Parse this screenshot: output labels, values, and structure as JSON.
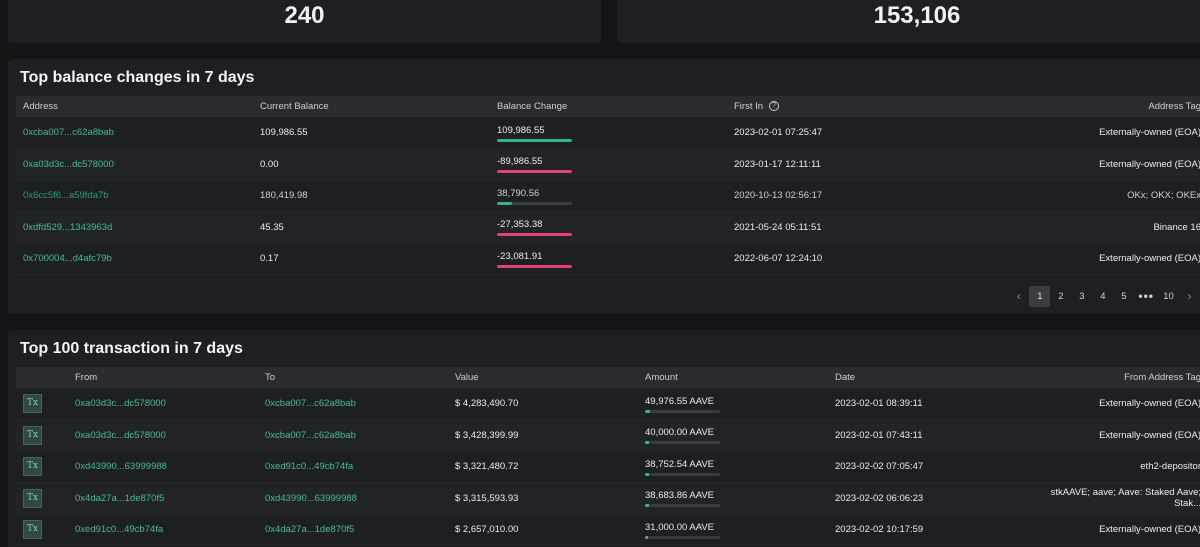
{
  "stats": [
    {
      "value": "240"
    },
    {
      "value": "153,106"
    }
  ],
  "balance_panel": {
    "title": "Top balance changes in 7 days",
    "headers": [
      "Address",
      "Current Balance",
      "Balance Change",
      "First In",
      "Address Tag"
    ],
    "rows": [
      {
        "address": "0xcba007...c62a8bab",
        "current": "109,986.55",
        "change": "109,986.55",
        "change_ratio": 1.0,
        "sign": "pos",
        "first_in": "2023-02-01 07:25:47",
        "tag": "Externally-owned (EOA)"
      },
      {
        "address": "0xa03d3c...dc578000",
        "current": "0.00",
        "change": "-89,986.55",
        "change_ratio": 1.0,
        "sign": "neg",
        "first_in": "2023-01-17 12:11:11",
        "tag": "Externally-owned (EOA)"
      },
      {
        "address": "0x6cc5f6...a59fda7b",
        "current": "180,419.98",
        "change": "38,790.56",
        "change_ratio": 0.2,
        "sign": "pos",
        "first_in": "2020-10-13 02:56:17",
        "tag": "OKx; OKX; OKEx"
      },
      {
        "address": "0xdfd529...1343963d",
        "current": "45.35",
        "change": "-27,353.38",
        "change_ratio": 1.0,
        "sign": "neg",
        "first_in": "2021-05-24 05:11:51",
        "tag": "Binance 16"
      },
      {
        "address": "0x700004...d4afc79b",
        "current": "0.17",
        "change": "-23,081.91",
        "change_ratio": 1.0,
        "sign": "neg",
        "first_in": "2022-06-07 12:24:10",
        "tag": "Externally-owned (EOA)"
      }
    ],
    "pager": {
      "prev": "‹",
      "pages": [
        "1",
        "2",
        "3",
        "4",
        "5"
      ],
      "dots": "•••",
      "last": "10",
      "next": "›"
    }
  },
  "tx_panel": {
    "title": "Top 100 transaction in 7 days",
    "headers": [
      "",
      "From",
      "To",
      "Value",
      "Amount",
      "Date",
      "From Address Tag"
    ],
    "badge": "Tx",
    "rows": [
      {
        "from": "0xa03d3c...dc578000",
        "to": "0xcba007...c62a8bab",
        "value": "$ 4,283,490.70",
        "amount": "49,976.55 AAVE",
        "amount_ratio": 0.06,
        "date": "2023-02-01 08:39:11",
        "tag": "Externally-owned (EOA)"
      },
      {
        "from": "0xa03d3c...dc578000",
        "to": "0xcba007...c62a8bab",
        "value": "$ 3,428,399.99",
        "amount": "40,000.00 AAVE",
        "amount_ratio": 0.05,
        "date": "2023-02-01 07:43:11",
        "tag": "Externally-owned (EOA)"
      },
      {
        "from": "0xd43990...63999988",
        "to": "0xed91c0...49cb74fa",
        "value": "$ 3,321,480.72",
        "amount": "38,752.54 AAVE",
        "amount_ratio": 0.05,
        "date": "2023-02-02 07:05:47",
        "tag": "eth2-depositor"
      },
      {
        "from": "0x4da27a...1de870f5",
        "to": "0xd43990...63999988",
        "value": "$ 3,315,593.93",
        "amount": "38,683.86 AAVE",
        "amount_ratio": 0.05,
        "date": "2023-02-02 06:06:23",
        "tag": "stkAAVE; aave; Aave: Staked Aave; Stak..."
      },
      {
        "from": "0xed91c0...49cb74fa",
        "to": "0x4da27a...1de870f5",
        "value": "$ 2,657,010.00",
        "amount": "31,000.00 AAVE",
        "amount_ratio": 0.04,
        "date": "2023-02-02 10:17:59",
        "tag": "Externally-owned (EOA)"
      }
    ]
  }
}
